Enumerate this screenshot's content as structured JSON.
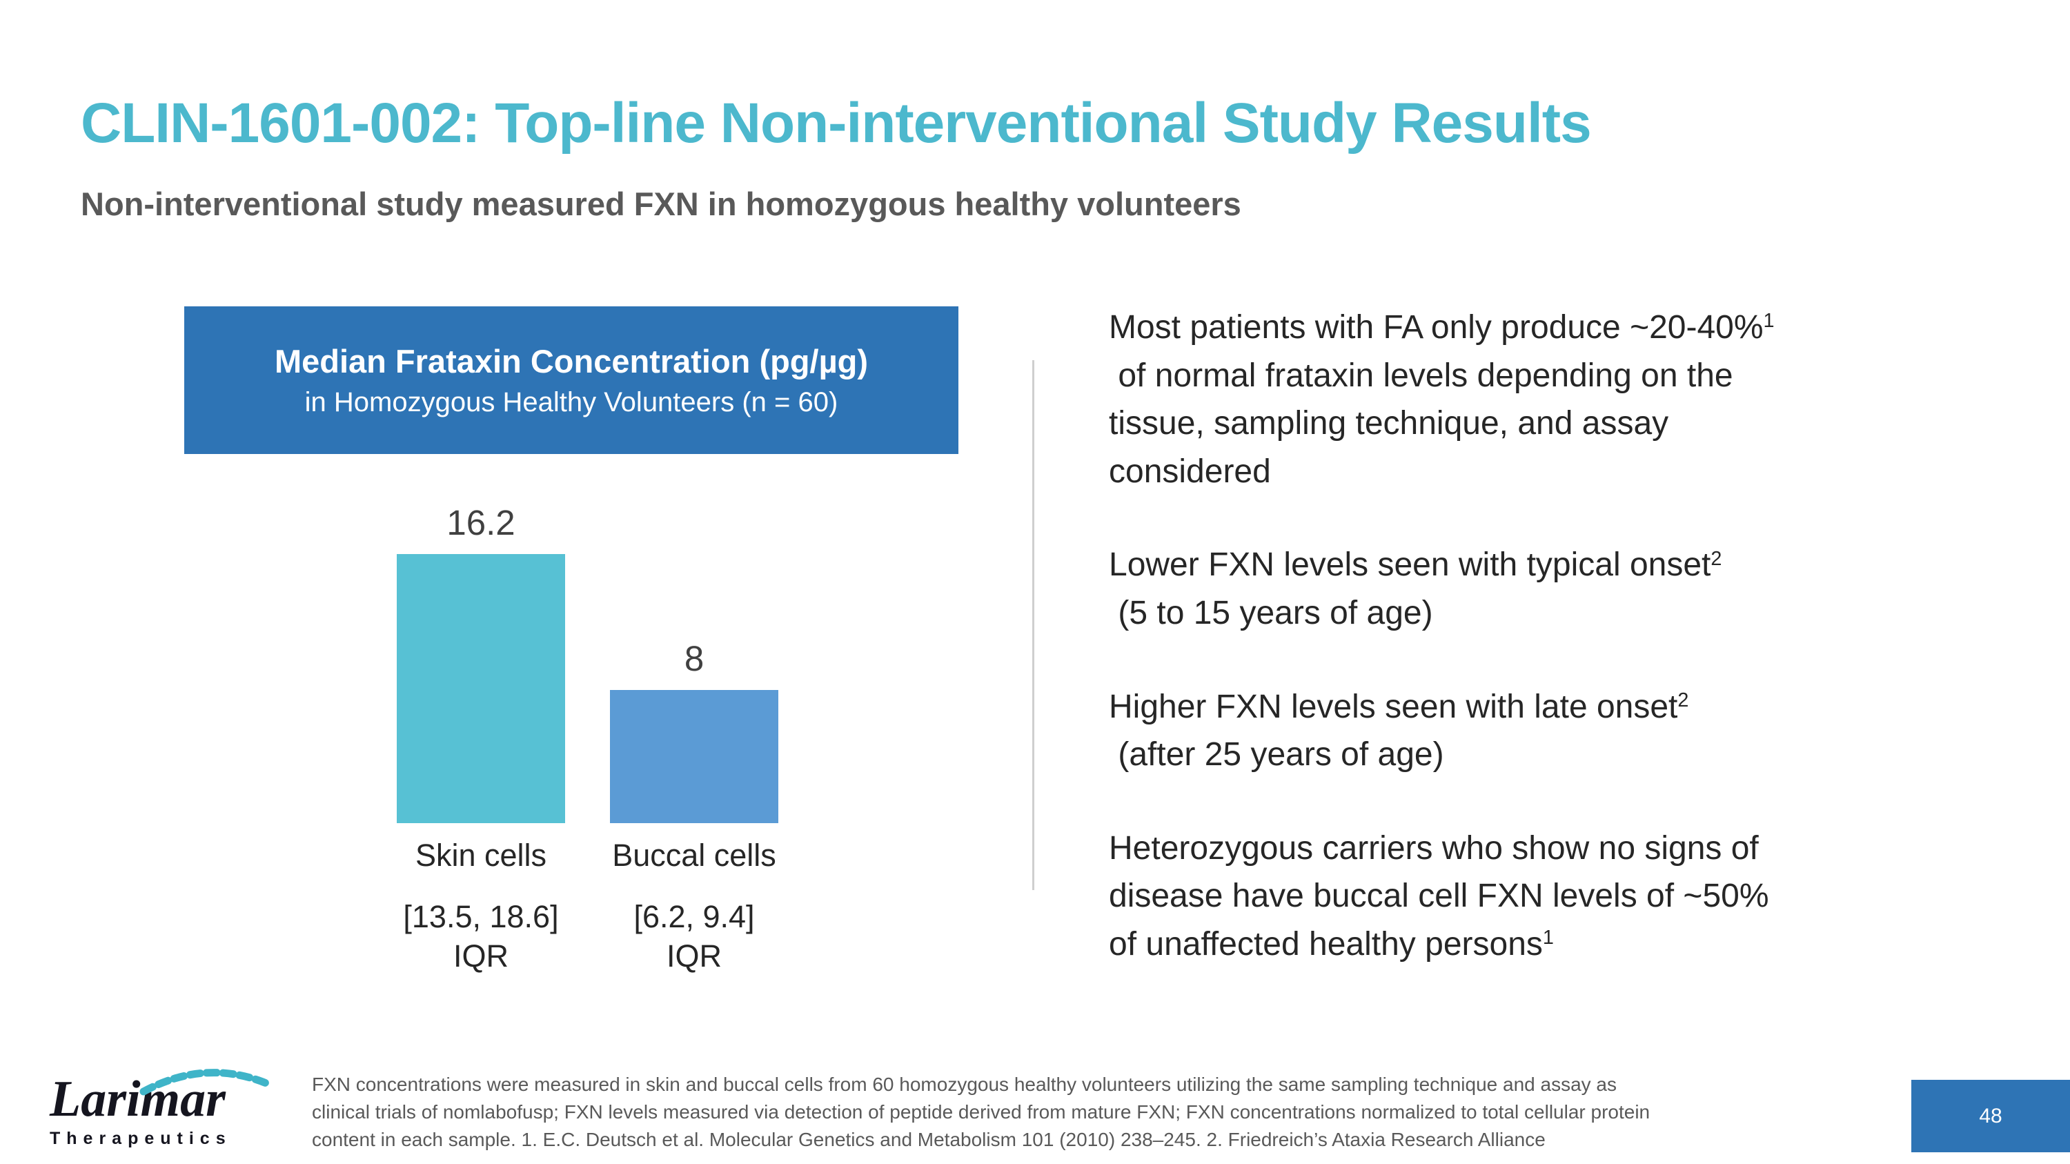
{
  "slide": {
    "title": "CLIN-1601-002: Top-line Non-interventional Study Results",
    "subtitle": "Non-interventional study measured FXN in homozygous healthy volunteers",
    "page_number": "48"
  },
  "chart_header": {
    "line1": "Median Frataxin Concentration (pg/µg)",
    "line2": "in Homozygous Healthy Volunteers (n = 60)"
  },
  "chart_data": {
    "type": "bar",
    "title": "Median Frataxin Concentration (pg/µg) in Homozygous Healthy Volunteers (n = 60)",
    "categories": [
      "Skin cells",
      "Buccal cells"
    ],
    "values": [
      16.2,
      8
    ],
    "value_labels": [
      "16.2",
      "8"
    ],
    "iqr_labels": [
      "[13.5, 18.6]",
      "[6.2, 9.4]"
    ],
    "iqr_caption": "IQR",
    "bar_colors": [
      "#57c1d4",
      "#5b9bd5"
    ],
    "ylabel": "Median Frataxin Concentration (pg/µg)",
    "xlabel": "",
    "ylim": [
      0,
      18
    ],
    "grid": false,
    "legend": "none"
  },
  "bullets": {
    "p1": {
      "t1": "Most patients with FA only produce ~20-40%",
      "s1": "1",
      "t2": "\n of normal frataxin levels depending on the\ntissue, sampling technique, and assay\nconsidered"
    },
    "p2": {
      "t1": "Lower FXN levels seen with typical onset",
      "s1": "2",
      "t2": "\n (5 to 15 years of age)"
    },
    "p3": {
      "t1": "Higher FXN levels seen with late onset",
      "s1": "2",
      "t2": "\n (after 25 years of age)"
    },
    "p4": {
      "t1": "Heterozygous carriers who show no signs of\ndisease have buccal cell FXN levels of ~50%\nof unaffected healthy persons",
      "s1": "1"
    }
  },
  "footer": {
    "brand": {
      "name": "Larimar",
      "tagline": "Therapeutics"
    },
    "footnote": {
      "line1": "FXN concentrations were measured in skin and buccal cells from 60 homozygous healthy volunteers utilizing the same sampling technique and assay as",
      "line2": "clinical trials of nomlabofusp; FXN levels measured via detection of peptide derived from mature FXN; FXN concentrations normalized to total cellular protein",
      "line3": "content in each sample. 1. E.C. Deutsch et al. Molecular Genetics and Metabolism 101 (2010) 238–245. 2. Friedreich’s Ataxia Research Alliance"
    }
  },
  "colors": {
    "title_teal": "#4cb8cd",
    "header_blue": "#2e74b5",
    "bar_teal": "#57c1d4",
    "bar_blue": "#5b9bd5",
    "subtitle_gray": "#595959"
  }
}
